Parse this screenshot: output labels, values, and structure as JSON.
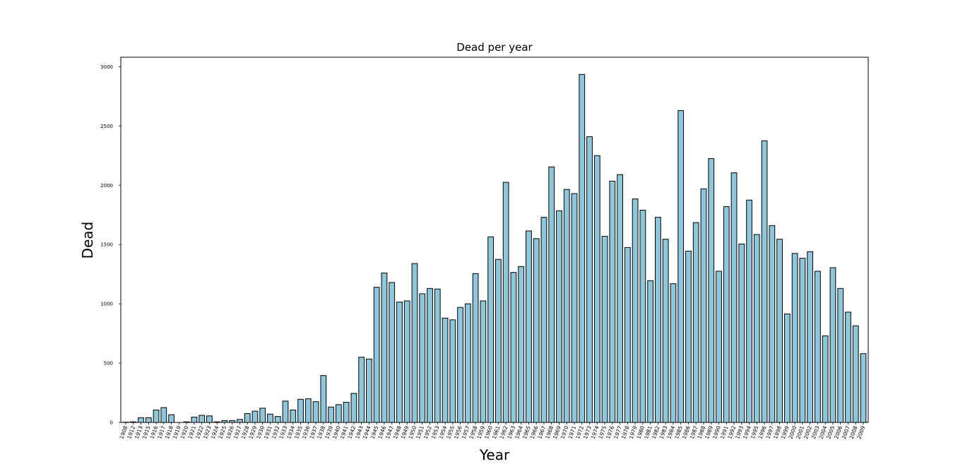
{
  "chart_data": {
    "type": "bar",
    "title": "Dead per year",
    "xlabel": "Year",
    "ylabel": "Dead",
    "ylim": [
      0,
      3080
    ],
    "yticks": [
      0,
      500,
      1000,
      1500,
      2000,
      2500,
      3000
    ],
    "grid": false,
    "colors": {
      "bar_fill": "#8ec6dc",
      "bar_edge": "#000000"
    },
    "categories": [
      "1908",
      "1912",
      "1913",
      "1915",
      "1916",
      "1917",
      "1918",
      "1919",
      "1920",
      "1921",
      "1922",
      "1923",
      "1924",
      "1925",
      "1926",
      "1927",
      "1928",
      "1929",
      "1930",
      "1931",
      "1932",
      "1933",
      "1934",
      "1935",
      "1936",
      "1937",
      "1938",
      "1939",
      "1940",
      "1941",
      "1942",
      "1943",
      "1944",
      "1945",
      "1946",
      "1947",
      "1948",
      "1949",
      "1950",
      "1951",
      "1952",
      "1953",
      "1954",
      "1955",
      "1956",
      "1957",
      "1958",
      "1959",
      "1960",
      "1961",
      "1962",
      "1963",
      "1964",
      "1965",
      "1966",
      "1967",
      "1968",
      "1969",
      "1970",
      "1971",
      "1972",
      "1973",
      "1974",
      "1975",
      "1976",
      "1977",
      "1978",
      "1979",
      "1980",
      "1981",
      "1982",
      "1983",
      "1984",
      "1985",
      "1986",
      "1987",
      "1988",
      "1989",
      "1990",
      "1991",
      "1992",
      "1993",
      "1994",
      "1995",
      "1996",
      "1997",
      "1998",
      "1999",
      "2000",
      "2001",
      "2002",
      "2003",
      "2004",
      "2005",
      "2006",
      "2007",
      "2008",
      "2009"
    ],
    "values": [
      2,
      5,
      40,
      40,
      105,
      125,
      65,
      0,
      5,
      45,
      60,
      55,
      5,
      15,
      15,
      25,
      75,
      95,
      120,
      70,
      50,
      180,
      105,
      195,
      200,
      175,
      395,
      130,
      150,
      170,
      245,
      550,
      535,
      1140,
      1260,
      1180,
      1015,
      1025,
      1340,
      1085,
      1130,
      1125,
      880,
      865,
      970,
      1000,
      1255,
      1025,
      1565,
      1375,
      2025,
      1265,
      1315,
      1615,
      1550,
      1730,
      2155,
      1785,
      1965,
      1930,
      2935,
      2410,
      2250,
      1570,
      2035,
      2090,
      1475,
      1885,
      1790,
      1195,
      1730,
      1545,
      1170,
      2630,
      1445,
      1685,
      1970,
      2225,
      1275,
      1820,
      2105,
      1505,
      1875,
      1585,
      2375,
      1660,
      1545,
      915,
      1425,
      1385,
      1440,
      1275,
      730,
      1305,
      1130,
      930,
      815,
      580
    ]
  }
}
